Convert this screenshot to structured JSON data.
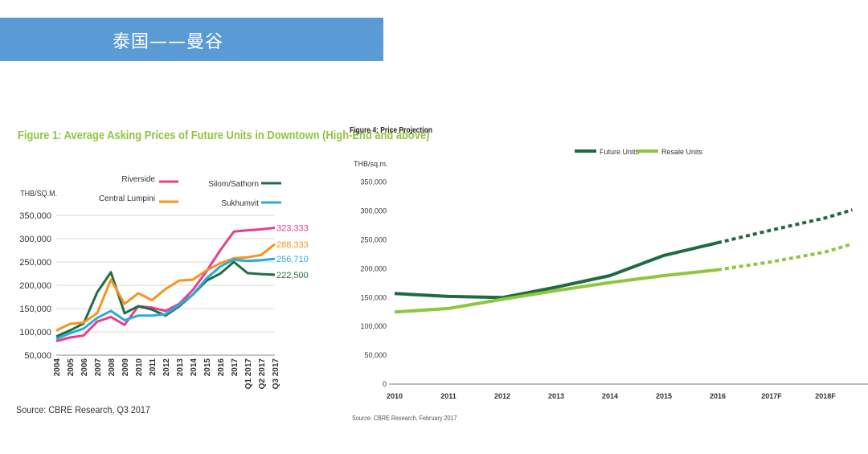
{
  "header": {
    "title": "泰国——曼谷",
    "color": "#5b9bd5"
  },
  "chart_data": [
    {
      "type": "line",
      "title": "Figure 1: Average Asking Prices of Future Units in Downtown (High-End and above)",
      "title_color": "#8dc63f",
      "ylabel": "THB/SQ.M.",
      "ylim": [
        50000,
        350000
      ],
      "yticks": [
        "350,000",
        "300,000",
        "250,000",
        "200,000",
        "150,000",
        "100,000",
        "50,000"
      ],
      "ytick_values": [
        350000,
        300000,
        250000,
        200000,
        150000,
        100000,
        50000
      ],
      "categories": [
        "2004",
        "2005",
        "2006",
        "2007",
        "2008",
        "2009",
        "2010",
        "2011",
        "2012",
        "2013",
        "2014",
        "2015",
        "2016",
        "2017",
        "Q1 2017",
        "Q2 2017",
        "Q3 2017"
      ],
      "legend": [
        "Riverside",
        "Silom/Sathorn",
        "Central Lumpini",
        "Sukhumvit"
      ],
      "series": [
        {
          "name": "Riverside",
          "color": "#e83e8c",
          "end_label": "323,333",
          "values": [
            80000,
            88000,
            92000,
            122000,
            132000,
            115000,
            155000,
            152000,
            145000,
            160000,
            190000,
            230000,
            275000,
            315000,
            318000,
            320000,
            323333
          ]
        },
        {
          "name": "Silom/Sathorn",
          "color": "#1f6e43",
          "end_label": "222,500",
          "values": [
            90000,
            103000,
            118000,
            185000,
            228000,
            140000,
            155000,
            148000,
            135000,
            155000,
            180000,
            210000,
            225000,
            250000,
            226000,
            224000,
            222500
          ]
        },
        {
          "name": "Central Lumpini",
          "color": "#f7941d",
          "end_label": "288,333",
          "values": [
            103000,
            117000,
            120000,
            140000,
            212000,
            160000,
            183000,
            168000,
            192000,
            210000,
            212000,
            232000,
            247000,
            258000,
            260000,
            265000,
            288333
          ]
        },
        {
          "name": "Sukhumvit",
          "color": "#29abe2",
          "end_label": "256,710",
          "values": [
            85000,
            97000,
            107000,
            130000,
            145000,
            125000,
            135000,
            135000,
            138000,
            158000,
            180000,
            215000,
            240000,
            255000,
            252000,
            254000,
            256710
          ]
        }
      ],
      "source": "Source: CBRE Research, Q3 2017"
    },
    {
      "type": "line",
      "title": "Figure 4: Price Projection",
      "ylabel": "THB/sq.m.",
      "ylim": [
        0,
        350000
      ],
      "yticks": [
        "350,000",
        "300,000",
        "250,000",
        "200,000",
        "150,000",
        "100,000",
        "50,000",
        "0"
      ],
      "ytick_values": [
        350000,
        300000,
        250000,
        200000,
        150000,
        100000,
        50000,
        0
      ],
      "categories": [
        "2010",
        "2011",
        "2012",
        "2013",
        "2014",
        "2015",
        "2016",
        "2017F",
        "2018F"
      ],
      "legend": [
        "Future Units",
        "Resale Units"
      ],
      "series": [
        {
          "name": "Future Units",
          "color": "#1e6b40",
          "values": [
            157000,
            152000,
            150000,
            168000,
            188000,
            223000,
            245000,
            null,
            null
          ],
          "projected": [
            [
              6,
              245000
            ],
            [
              7,
              267000
            ],
            [
              8,
              288000
            ],
            [
              8.5,
              302000
            ]
          ]
        },
        {
          "name": "Resale Units",
          "color": "#8dc63f",
          "values": [
            125000,
            131000,
            147000,
            162000,
            176000,
            188000,
            198000,
            null,
            null
          ],
          "projected": [
            [
              6,
              198000
            ],
            [
              7,
              212000
            ],
            [
              8,
              229000
            ],
            [
              8.5,
              243000
            ]
          ]
        }
      ],
      "source": "Source: CBRE Research, February 2017"
    }
  ]
}
